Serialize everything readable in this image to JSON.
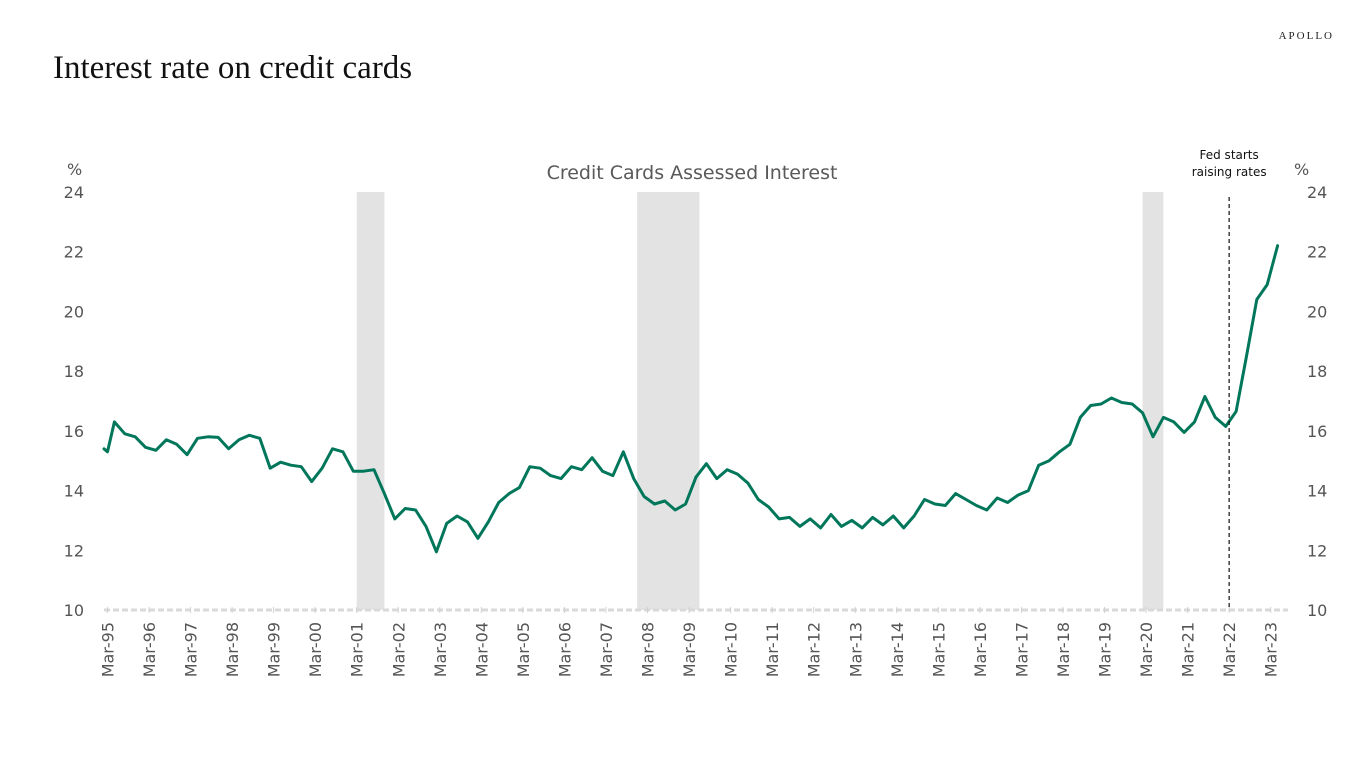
{
  "header": {
    "brand": "APOLLO",
    "title": "Interest rate on credit cards"
  },
  "chart_data": {
    "type": "line",
    "title": "Credit Cards Assessed Interest",
    "ylabel_left": "%",
    "ylabel_right": "%",
    "ylim": [
      10,
      24
    ],
    "yticks": [
      10,
      12,
      14,
      16,
      18,
      20,
      22,
      24
    ],
    "xlim": [
      "1995-02",
      "2023-08"
    ],
    "xtick_labels": [
      "Mar-95",
      "Mar-96",
      "Mar-97",
      "Mar-98",
      "Mar-99",
      "Mar-00",
      "Mar-01",
      "Mar-02",
      "Mar-03",
      "Mar-04",
      "Mar-05",
      "Mar-06",
      "Mar-07",
      "Mar-08",
      "Mar-09",
      "Mar-10",
      "Mar-11",
      "Mar-12",
      "Mar-13",
      "Mar-14",
      "Mar-15",
      "Mar-16",
      "Mar-17",
      "Mar-18",
      "Mar-19",
      "Mar-20",
      "Mar-21",
      "Mar-22",
      "Mar-23"
    ],
    "series": [
      {
        "color": "#00775a",
        "points": [
          [
            "1995-02",
            15.4
          ],
          [
            "1995-03",
            15.3
          ],
          [
            "1995-05",
            16.3
          ],
          [
            "1995-08",
            15.9
          ],
          [
            "1995-11",
            15.8
          ],
          [
            "1996-02",
            15.45
          ],
          [
            "1996-05",
            15.35
          ],
          [
            "1996-08",
            15.7
          ],
          [
            "1996-11",
            15.55
          ],
          [
            "1997-02",
            15.2
          ],
          [
            "1997-05",
            15.75
          ],
          [
            "1997-08",
            15.8
          ],
          [
            "1997-11",
            15.78
          ],
          [
            "1998-02",
            15.4
          ],
          [
            "1998-05",
            15.7
          ],
          [
            "1998-08",
            15.85
          ],
          [
            "1998-11",
            15.75
          ],
          [
            "1999-02",
            14.75
          ],
          [
            "1999-05",
            14.95
          ],
          [
            "1999-08",
            14.85
          ],
          [
            "1999-11",
            14.8
          ],
          [
            "2000-02",
            14.3
          ],
          [
            "2000-05",
            14.75
          ],
          [
            "2000-08",
            15.4
          ],
          [
            "2000-11",
            15.3
          ],
          [
            "2001-02",
            14.65
          ],
          [
            "2001-05",
            14.65
          ],
          [
            "2001-08",
            14.7
          ],
          [
            "2001-11",
            13.9
          ],
          [
            "2002-02",
            13.05
          ],
          [
            "2002-05",
            13.4
          ],
          [
            "2002-08",
            13.35
          ],
          [
            "2002-11",
            12.8
          ],
          [
            "2003-02",
            11.95
          ],
          [
            "2003-05",
            12.9
          ],
          [
            "2003-08",
            13.15
          ],
          [
            "2003-11",
            12.95
          ],
          [
            "2004-02",
            12.4
          ],
          [
            "2004-05",
            12.95
          ],
          [
            "2004-08",
            13.6
          ],
          [
            "2004-11",
            13.9
          ],
          [
            "2005-02",
            14.1
          ],
          [
            "2005-05",
            14.8
          ],
          [
            "2005-08",
            14.75
          ],
          [
            "2005-11",
            14.5
          ],
          [
            "2006-02",
            14.4
          ],
          [
            "2006-05",
            14.8
          ],
          [
            "2006-08",
            14.7
          ],
          [
            "2006-11",
            15.1
          ],
          [
            "2007-02",
            14.65
          ],
          [
            "2007-05",
            14.5
          ],
          [
            "2007-08",
            15.3
          ],
          [
            "2007-11",
            14.4
          ],
          [
            "2008-02",
            13.8
          ],
          [
            "2008-05",
            13.55
          ],
          [
            "2008-08",
            13.65
          ],
          [
            "2008-11",
            13.35
          ],
          [
            "2009-02",
            13.55
          ],
          [
            "2009-05",
            14.45
          ],
          [
            "2009-08",
            14.9
          ],
          [
            "2009-11",
            14.4
          ],
          [
            "2010-02",
            14.7
          ],
          [
            "2010-05",
            14.55
          ],
          [
            "2010-08",
            14.25
          ],
          [
            "2010-11",
            13.7
          ],
          [
            "2011-02",
            13.45
          ],
          [
            "2011-05",
            13.05
          ],
          [
            "2011-08",
            13.1
          ],
          [
            "2011-11",
            12.8
          ],
          [
            "2012-02",
            13.05
          ],
          [
            "2012-05",
            12.75
          ],
          [
            "2012-08",
            13.2
          ],
          [
            "2012-11",
            12.8
          ],
          [
            "2013-02",
            13.0
          ],
          [
            "2013-05",
            12.75
          ],
          [
            "2013-08",
            13.1
          ],
          [
            "2013-11",
            12.85
          ],
          [
            "2014-02",
            13.15
          ],
          [
            "2014-05",
            12.75
          ],
          [
            "2014-08",
            13.15
          ],
          [
            "2014-11",
            13.7
          ],
          [
            "2015-02",
            13.55
          ],
          [
            "2015-05",
            13.5
          ],
          [
            "2015-08",
            13.9
          ],
          [
            "2015-11",
            13.7
          ],
          [
            "2016-02",
            13.5
          ],
          [
            "2016-05",
            13.35
          ],
          [
            "2016-08",
            13.75
          ],
          [
            "2016-11",
            13.6
          ],
          [
            "2017-02",
            13.85
          ],
          [
            "2017-05",
            14.0
          ],
          [
            "2017-08",
            14.85
          ],
          [
            "2017-11",
            15.0
          ],
          [
            "2018-02",
            15.3
          ],
          [
            "2018-05",
            15.55
          ],
          [
            "2018-08",
            16.45
          ],
          [
            "2018-11",
            16.85
          ],
          [
            "2019-02",
            16.9
          ],
          [
            "2019-05",
            17.1
          ],
          [
            "2019-08",
            16.95
          ],
          [
            "2019-11",
            16.9
          ],
          [
            "2020-02",
            16.6
          ],
          [
            "2020-05",
            15.8
          ],
          [
            "2020-08",
            16.45
          ],
          [
            "2020-11",
            16.3
          ],
          [
            "2021-02",
            15.95
          ],
          [
            "2021-05",
            16.3
          ],
          [
            "2021-08",
            17.15
          ],
          [
            "2021-11",
            16.45
          ],
          [
            "2022-02",
            16.15
          ],
          [
            "2022-05",
            16.65
          ],
          [
            "2022-08",
            18.5
          ],
          [
            "2022-11",
            20.4
          ],
          [
            "2023-02",
            20.9
          ],
          [
            "2023-05",
            22.2
          ]
        ]
      }
    ],
    "recessions": [
      {
        "start": "2001-03",
        "end": "2001-11"
      },
      {
        "start": "2007-12",
        "end": "2009-06"
      },
      {
        "start": "2020-02",
        "end": "2020-08"
      }
    ],
    "annotations": [
      {
        "type": "vline",
        "x": "2022-03",
        "style": "dashed",
        "text_lines": [
          "Fed starts",
          "raising rates"
        ]
      }
    ]
  }
}
